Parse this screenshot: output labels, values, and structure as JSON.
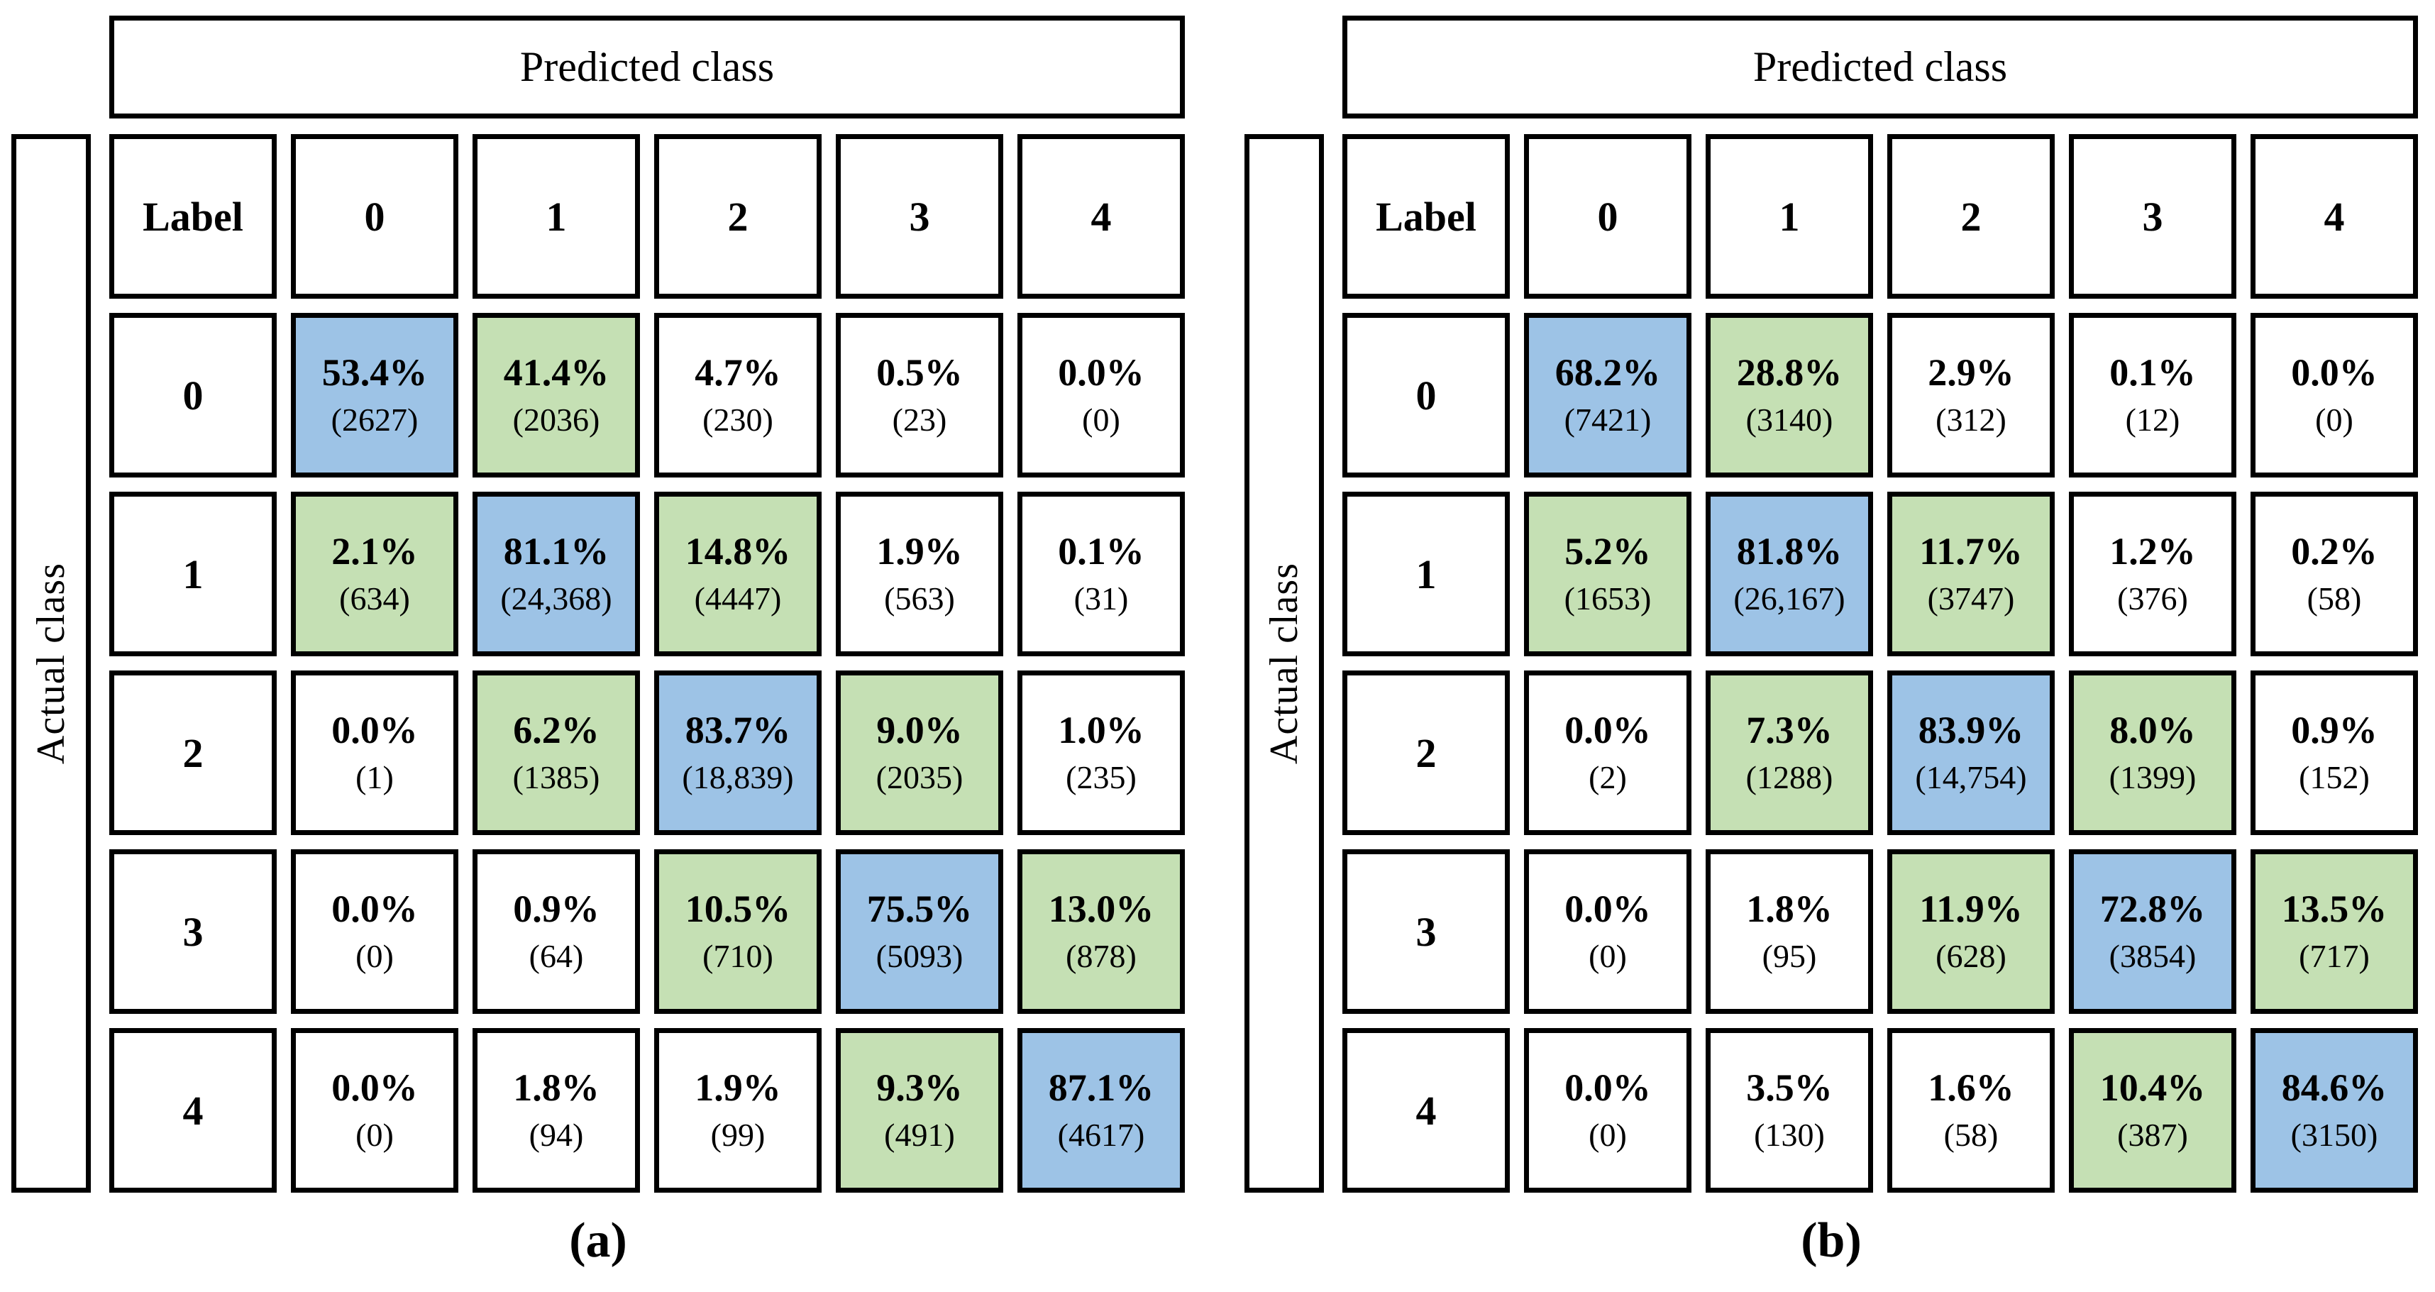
{
  "colors": {
    "blue": "#9DC3E6",
    "green": "#C5E0B4",
    "white": "#FFFFFF",
    "border": "#000000"
  },
  "panels": [
    {
      "caption": "(a)",
      "predicted_axis_label": "Predicted class",
      "actual_axis_label": "Actual class",
      "corner_label": "Label",
      "col_headers": [
        "0",
        "1",
        "2",
        "3",
        "4"
      ],
      "rows": [
        {
          "label": "0",
          "cells": [
            {
              "pct": "53.4%",
              "count": "(2627)",
              "color": "blue"
            },
            {
              "pct": "41.4%",
              "count": "(2036)",
              "color": "green"
            },
            {
              "pct": "4.7%",
              "count": "(230)",
              "color": "white"
            },
            {
              "pct": "0.5%",
              "count": "(23)",
              "color": "white"
            },
            {
              "pct": "0.0%",
              "count": "(0)",
              "color": "white"
            }
          ]
        },
        {
          "label": "1",
          "cells": [
            {
              "pct": "2.1%",
              "count": "(634)",
              "color": "green"
            },
            {
              "pct": "81.1%",
              "count": "(24,368)",
              "color": "blue"
            },
            {
              "pct": "14.8%",
              "count": "(4447)",
              "color": "green"
            },
            {
              "pct": "1.9%",
              "count": "(563)",
              "color": "white"
            },
            {
              "pct": "0.1%",
              "count": "(31)",
              "color": "white"
            }
          ]
        },
        {
          "label": "2",
          "cells": [
            {
              "pct": "0.0%",
              "count": "(1)",
              "color": "white"
            },
            {
              "pct": "6.2%",
              "count": "(1385)",
              "color": "green"
            },
            {
              "pct": "83.7%",
              "count": "(18,839)",
              "color": "blue"
            },
            {
              "pct": "9.0%",
              "count": "(2035)",
              "color": "green"
            },
            {
              "pct": "1.0%",
              "count": "(235)",
              "color": "white"
            }
          ]
        },
        {
          "label": "3",
          "cells": [
            {
              "pct": "0.0%",
              "count": "(0)",
              "color": "white"
            },
            {
              "pct": "0.9%",
              "count": "(64)",
              "color": "white"
            },
            {
              "pct": "10.5%",
              "count": "(710)",
              "color": "green"
            },
            {
              "pct": "75.5%",
              "count": "(5093)",
              "color": "blue"
            },
            {
              "pct": "13.0%",
              "count": "(878)",
              "color": "green"
            }
          ]
        },
        {
          "label": "4",
          "cells": [
            {
              "pct": "0.0%",
              "count": "(0)",
              "color": "white"
            },
            {
              "pct": "1.8%",
              "count": "(94)",
              "color": "white"
            },
            {
              "pct": "1.9%",
              "count": "(99)",
              "color": "white"
            },
            {
              "pct": "9.3%",
              "count": "(491)",
              "color": "green"
            },
            {
              "pct": "87.1%",
              "count": "(4617)",
              "color": "blue"
            }
          ]
        }
      ]
    },
    {
      "caption": "(b)",
      "predicted_axis_label": "Predicted class",
      "actual_axis_label": "Actual class",
      "corner_label": "Label",
      "col_headers": [
        "0",
        "1",
        "2",
        "3",
        "4"
      ],
      "rows": [
        {
          "label": "0",
          "cells": [
            {
              "pct": "68.2%",
              "count": "(7421)",
              "color": "blue"
            },
            {
              "pct": "28.8%",
              "count": "(3140)",
              "color": "green"
            },
            {
              "pct": "2.9%",
              "count": "(312)",
              "color": "white"
            },
            {
              "pct": "0.1%",
              "count": "(12)",
              "color": "white"
            },
            {
              "pct": "0.0%",
              "count": "(0)",
              "color": "white"
            }
          ]
        },
        {
          "label": "1",
          "cells": [
            {
              "pct": "5.2%",
              "count": "(1653)",
              "color": "green"
            },
            {
              "pct": "81.8%",
              "count": "(26,167)",
              "color": "blue"
            },
            {
              "pct": "11.7%",
              "count": "(3747)",
              "color": "green"
            },
            {
              "pct": "1.2%",
              "count": "(376)",
              "color": "white"
            },
            {
              "pct": "0.2%",
              "count": "(58)",
              "color": "white"
            }
          ]
        },
        {
          "label": "2",
          "cells": [
            {
              "pct": "0.0%",
              "count": "(2)",
              "color": "white"
            },
            {
              "pct": "7.3%",
              "count": "(1288)",
              "color": "green"
            },
            {
              "pct": "83.9%",
              "count": "(14,754)",
              "color": "blue"
            },
            {
              "pct": "8.0%",
              "count": "(1399)",
              "color": "green"
            },
            {
              "pct": "0.9%",
              "count": "(152)",
              "color": "white"
            }
          ]
        },
        {
          "label": "3",
          "cells": [
            {
              "pct": "0.0%",
              "count": "(0)",
              "color": "white"
            },
            {
              "pct": "1.8%",
              "count": "(95)",
              "color": "white"
            },
            {
              "pct": "11.9%",
              "count": "(628)",
              "color": "green"
            },
            {
              "pct": "72.8%",
              "count": "(3854)",
              "color": "blue"
            },
            {
              "pct": "13.5%",
              "count": "(717)",
              "color": "green"
            }
          ]
        },
        {
          "label": "4",
          "cells": [
            {
              "pct": "0.0%",
              "count": "(0)",
              "color": "white"
            },
            {
              "pct": "3.5%",
              "count": "(130)",
              "color": "white"
            },
            {
              "pct": "1.6%",
              "count": "(58)",
              "color": "white"
            },
            {
              "pct": "10.4%",
              "count": "(387)",
              "color": "green"
            },
            {
              "pct": "84.6%",
              "count": "(3150)",
              "color": "blue"
            }
          ]
        }
      ]
    }
  ],
  "chart_data": [
    {
      "type": "heatmap",
      "title": "(a)",
      "xlabel": "Predicted class",
      "ylabel": "Actual class",
      "x_labels": [
        "0",
        "1",
        "2",
        "3",
        "4"
      ],
      "y_labels": [
        "0",
        "1",
        "2",
        "3",
        "4"
      ],
      "percent": [
        [
          53.4,
          41.4,
          4.7,
          0.5,
          0.0
        ],
        [
          2.1,
          81.1,
          14.8,
          1.9,
          0.1
        ],
        [
          0.0,
          6.2,
          83.7,
          9.0,
          1.0
        ],
        [
          0.0,
          0.9,
          10.5,
          75.5,
          13.0
        ],
        [
          0.0,
          1.8,
          1.9,
          9.3,
          87.1
        ]
      ],
      "counts": [
        [
          2627,
          2036,
          230,
          23,
          0
        ],
        [
          634,
          24368,
          4447,
          563,
          31
        ],
        [
          1,
          1385,
          18839,
          2035,
          235
        ],
        [
          0,
          64,
          710,
          5093,
          878
        ],
        [
          0,
          94,
          99,
          491,
          4617
        ]
      ],
      "cell_colors": "diagonal=blue #9DC3E6, |row-col|=1 = green #C5E0B4, else white"
    },
    {
      "type": "heatmap",
      "title": "(b)",
      "xlabel": "Predicted class",
      "ylabel": "Actual class",
      "x_labels": [
        "0",
        "1",
        "2",
        "3",
        "4"
      ],
      "y_labels": [
        "0",
        "1",
        "2",
        "3",
        "4"
      ],
      "percent": [
        [
          68.2,
          28.8,
          2.9,
          0.1,
          0.0
        ],
        [
          5.2,
          81.8,
          11.7,
          1.2,
          0.2
        ],
        [
          0.0,
          7.3,
          83.9,
          8.0,
          0.9
        ],
        [
          0.0,
          1.8,
          11.9,
          72.8,
          13.5
        ],
        [
          0.0,
          3.5,
          1.6,
          10.4,
          84.6
        ]
      ],
      "counts": [
        [
          7421,
          3140,
          312,
          12,
          0
        ],
        [
          1653,
          26167,
          3747,
          376,
          58
        ],
        [
          2,
          1288,
          14754,
          1399,
          152
        ],
        [
          0,
          95,
          628,
          3854,
          717
        ],
        [
          0,
          130,
          58,
          387,
          3150
        ]
      ],
      "cell_colors": "diagonal=blue #9DC3E6, |row-col|=1 = green #C5E0B4, else white"
    }
  ]
}
